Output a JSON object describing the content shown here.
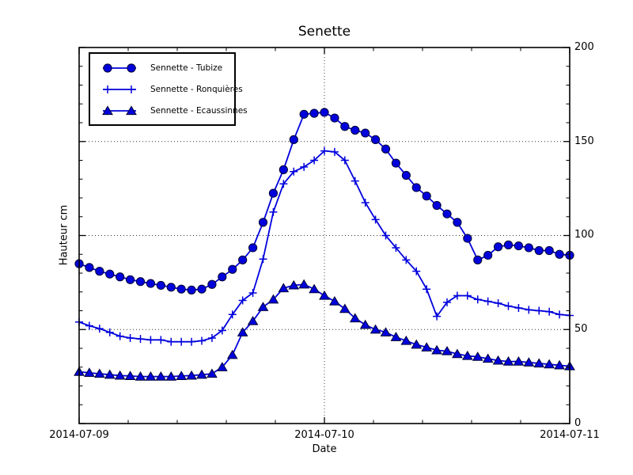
{
  "chart_data": {
    "type": "line",
    "title": "Senette",
    "xlabel": "Date",
    "ylabel": "Hauteur cm",
    "x_tick_labels": [
      "2014-07-09",
      "2014-07-10",
      "2014-07-11"
    ],
    "y_tick_labels": [
      "0",
      "50",
      "100",
      "150",
      "200"
    ],
    "xlim_hours": [
      0,
      48
    ],
    "ylim": [
      0,
      200
    ],
    "y_major_ticks": [
      0,
      50,
      100,
      150,
      200
    ],
    "y_minor_step": 10,
    "x_major_hours": [
      0,
      24,
      48
    ],
    "x_minor_hours": [
      4.8,
      9.6,
      14.4,
      19.2,
      28.8,
      33.6,
      38.4,
      43.2
    ],
    "grid": "dotted",
    "legend_position": "upper-left",
    "line_color": "#0000dd",
    "marker_edge_color": "#000033",
    "x_unit": "hours since 2014-07-09 00:00, hourly samples",
    "series": [
      {
        "name": "Sennette - Tubize",
        "marker": "circle",
        "color": "#0000dd",
        "values": [
          85,
          83,
          81,
          79.5,
          78,
          76.5,
          75.5,
          74.5,
          73.5,
          72.5,
          71.5,
          71,
          71.5,
          74,
          78,
          82,
          87,
          93.5,
          107,
          122.5,
          135,
          151,
          164.5,
          165,
          165.5,
          162.5,
          158,
          156,
          154.5,
          151,
          146,
          138.5,
          132,
          125.5,
          121,
          116,
          111.5,
          107,
          98.5,
          87,
          89.5,
          94,
          95,
          94.5,
          93.5,
          92,
          92,
          90,
          89.5
        ]
      },
      {
        "name": "Sennette - Ronquières",
        "marker": "plus",
        "color": "#0000dd",
        "values": [
          54,
          52,
          50.5,
          48.5,
          46.5,
          45.5,
          45,
          44.5,
          44.5,
          43.5,
          43.5,
          43.5,
          44,
          45.5,
          49.5,
          58,
          65.5,
          69.5,
          87.5,
          112.5,
          127.5,
          134,
          136.5,
          140,
          145,
          144.5,
          140,
          129,
          117.5,
          108.5,
          100,
          93.5,
          87,
          81,
          71.5,
          57,
          64.5,
          68,
          68,
          66,
          65,
          64,
          62.5,
          61.5,
          60.5,
          60,
          59.5,
          58,
          57.5
        ]
      },
      {
        "name": "Sennette - Ecaussinnes",
        "marker": "triangle",
        "color": "#0000dd",
        "values": [
          27.5,
          27,
          26.5,
          26,
          25.5,
          25.3,
          25,
          25,
          25,
          25,
          25.3,
          25.5,
          26,
          26.5,
          30,
          36.5,
          48.5,
          54.5,
          62,
          66,
          72,
          73.5,
          74,
          71.5,
          68,
          65,
          61,
          56,
          52.5,
          50,
          48.5,
          46,
          44,
          42,
          40.5,
          39,
          38.5,
          37,
          36,
          35.5,
          34.5,
          33.5,
          33,
          33,
          32.5,
          32,
          31.5,
          31,
          30.5
        ]
      }
    ]
  }
}
